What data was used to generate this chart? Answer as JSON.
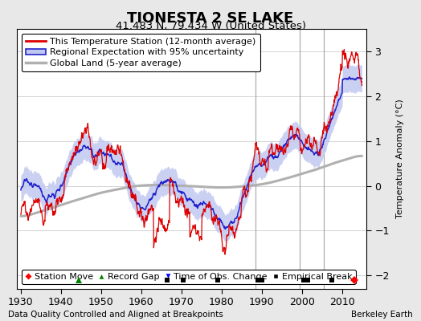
{
  "title": "TIONESTA 2 SE LAKE",
  "subtitle": "41.483 N, 79.434 W (United States)",
  "ylabel": "Temperature Anomaly (°C)",
  "xlabel_left": "Data Quality Controlled and Aligned at Breakpoints",
  "xlabel_right": "Berkeley Earth",
  "xlim": [
    1929,
    2016
  ],
  "ylim": [
    -2.3,
    3.5
  ],
  "yticks": [
    -2,
    -1,
    0,
    1,
    2,
    3
  ],
  "xticks": [
    1930,
    1940,
    1950,
    1960,
    1970,
    1980,
    1990,
    2000,
    2010
  ],
  "background_color": "#e8e8e8",
  "plot_bg_color": "#ffffff",
  "grid_color": "#cccccc",
  "station_color": "#dd0000",
  "regional_color": "#2222cc",
  "regional_fill_color": "#c0c8f0",
  "global_color": "#b0b0b0",
  "vertical_line_color": "#999999",
  "vertical_lines": [
    1988.5,
    1999.5,
    2005.5
  ],
  "title_fontsize": 13,
  "subtitle_fontsize": 9.5,
  "legend_fontsize": 8,
  "tick_fontsize": 9,
  "station_move_x": [
    2013.0
  ],
  "station_move_y": [
    -2.1
  ],
  "record_gap_x": [
    1944.5
  ],
  "record_gap_y": [
    -2.1
  ],
  "empirical_break_x": [
    1966.5,
    1970.5,
    1979.0,
    1989.0,
    1990.0,
    2000.5,
    2001.5,
    2007.5
  ],
  "empirical_break_y": [
    -2.1,
    -2.1,
    -2.1,
    -2.1,
    -2.1,
    -2.1,
    -2.1,
    -2.1
  ],
  "time_obs_change_x": [],
  "time_obs_change_y": []
}
